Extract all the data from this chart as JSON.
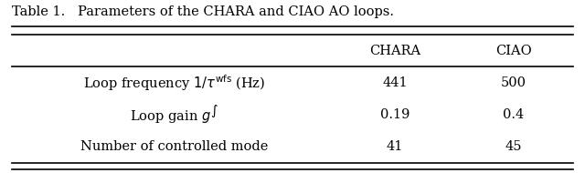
{
  "title": "Table 1.   Parameters of the CHARA and CIAO AO loops.",
  "col_labels": [
    "",
    "CHARA",
    "CIAO"
  ],
  "row_labels": [
    "Loop frequency $1/\\tau^{\\mathrm{wfs}}$ (Hz)",
    "Loop gain $g^{\\int}$",
    "Number of controlled mode"
  ],
  "chara_vals": [
    "441",
    "0.19",
    "41"
  ],
  "ciao_vals": [
    "500",
    "0.4",
    "45"
  ],
  "bg_color": "white",
  "text_color": "black",
  "title_fontsize": 10.5,
  "table_fontsize": 10.5,
  "figsize": [
    6.4,
    1.9
  ],
  "dpi": 100
}
